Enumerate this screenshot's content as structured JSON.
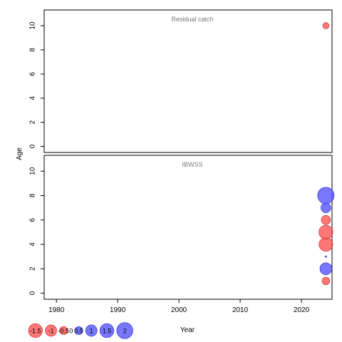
{
  "chart_data": {
    "type": "scatter",
    "encoding": "bubble",
    "ylabel": "Age",
    "xlabel": "Year",
    "xlim": [
      1978,
      2025
    ],
    "ylim": [
      -0.5,
      11.3
    ],
    "x_ticks": [
      1980,
      1990,
      2000,
      2010,
      2020
    ],
    "y_ticks": [
      0,
      2,
      4,
      6,
      8,
      10
    ],
    "colors": {
      "negative": "#ff5555",
      "positive": "#5555ff",
      "stroke_negative": "#cc3333",
      "stroke_positive": "#3333cc"
    },
    "panels": [
      {
        "title": "Residual catch",
        "points": [
          {
            "year": 2024,
            "age": 10,
            "value": -0.3
          }
        ]
      },
      {
        "title": "IBWSS",
        "points": [
          {
            "year": 2024,
            "age": 1,
            "value": -0.45
          },
          {
            "year": 2024,
            "age": 2,
            "value": 1.1
          },
          {
            "year": 2024,
            "age": 3,
            "value": 0.02
          },
          {
            "year": 2024,
            "age": 4,
            "value": -1.45
          },
          {
            "year": 2024,
            "age": 5,
            "value": -1.5
          },
          {
            "year": 2024,
            "age": 6,
            "value": -0.65
          },
          {
            "year": 2024,
            "age": 7,
            "value": 0.75
          },
          {
            "year": 2024,
            "age": 8,
            "value": 2.1
          }
        ]
      }
    ],
    "legend": {
      "position": "bottom-left",
      "entries": [
        {
          "label": "-1.5",
          "value": -1.5
        },
        {
          "label": "-1",
          "value": -1
        },
        {
          "label": "-0.5",
          "value": -0.5
        },
        {
          "label": "0",
          "value": 0
        },
        {
          "label": "0.5",
          "value": 0.5
        },
        {
          "label": "1",
          "value": 1
        },
        {
          "label": "1.5",
          "value": 1.5
        },
        {
          "label": "2",
          "value": 2
        }
      ]
    }
  }
}
